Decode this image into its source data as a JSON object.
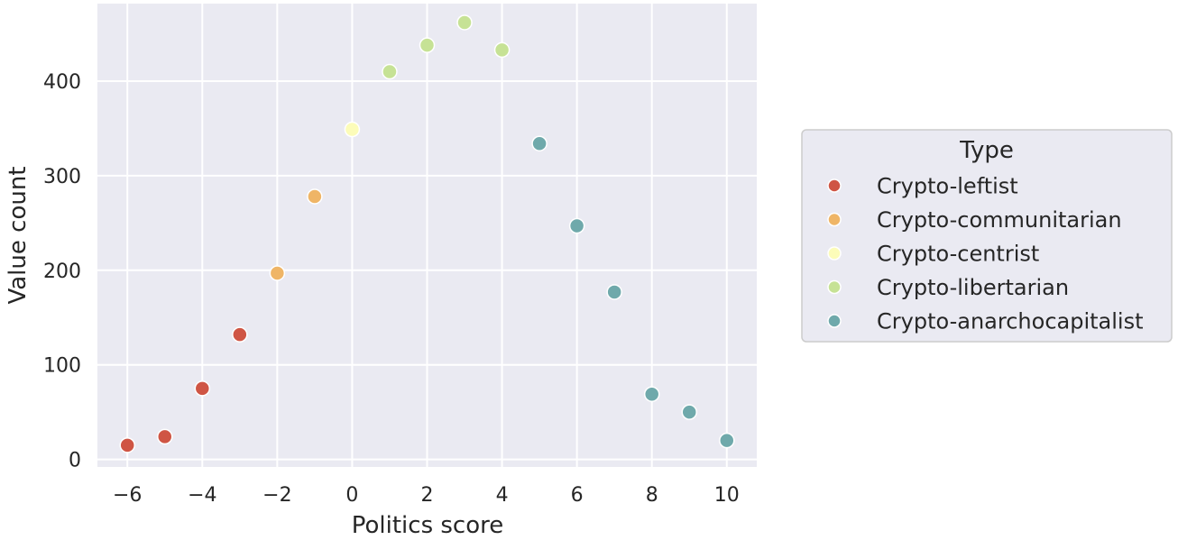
{
  "chart_data": {
    "type": "scatter",
    "title": "",
    "xlabel": "Politics score",
    "ylabel": "Value count",
    "xlim": [
      -6.8,
      10.8
    ],
    "ylim": [
      -8,
      482
    ],
    "xticks": [
      -6,
      -4,
      -2,
      0,
      2,
      4,
      6,
      8,
      10
    ],
    "xtick_labels": [
      "−6",
      "−4",
      "−2",
      "0",
      "2",
      "4",
      "6",
      "8",
      "10"
    ],
    "yticks": [
      0,
      100,
      200,
      300,
      400
    ],
    "ytick_labels": [
      "0",
      "100",
      "200",
      "300",
      "400"
    ],
    "grid": true,
    "legend": {
      "title": "Type",
      "placement": "outside-right"
    },
    "series": [
      {
        "name": "Crypto-leftist",
        "color": "#cf5544",
        "points": [
          {
            "x": -6,
            "y": 15
          },
          {
            "x": -5,
            "y": 24
          },
          {
            "x": -4,
            "y": 75
          },
          {
            "x": -3,
            "y": 132
          }
        ]
      },
      {
        "name": "Crypto-communitarian",
        "color": "#efb566",
        "points": [
          {
            "x": -2,
            "y": 197
          },
          {
            "x": -1,
            "y": 278
          }
        ]
      },
      {
        "name": "Crypto-centrist",
        "color": "#fcfcb9",
        "points": [
          {
            "x": 0,
            "y": 349
          }
        ]
      },
      {
        "name": "Crypto-libertarian",
        "color": "#c6e295",
        "points": [
          {
            "x": 1,
            "y": 410
          },
          {
            "x": 2,
            "y": 438
          },
          {
            "x": 3,
            "y": 462
          },
          {
            "x": 4,
            "y": 433
          }
        ]
      },
      {
        "name": "Crypto-anarchocapitalist",
        "color": "#6fa9ab",
        "points": [
          {
            "x": 5,
            "y": 334
          },
          {
            "x": 6,
            "y": 247
          },
          {
            "x": 7,
            "y": 177
          },
          {
            "x": 8,
            "y": 69
          },
          {
            "x": 9,
            "y": 50
          },
          {
            "x": 10,
            "y": 20
          }
        ]
      }
    ]
  }
}
